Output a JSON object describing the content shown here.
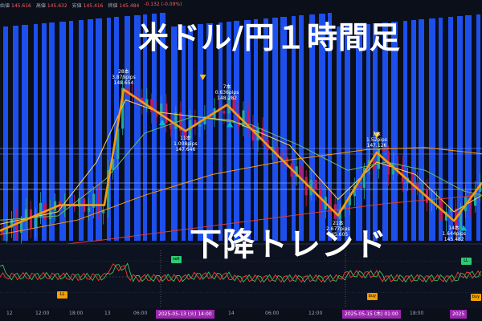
{
  "header": {
    "ohlc": [
      {
        "label": "始値",
        "value": "145.616"
      },
      {
        "label": "高値",
        "value": "145.632"
      },
      {
        "label": "安値",
        "value": "145.416"
      },
      {
        "label": "終値",
        "value": "145.484"
      },
      {
        "label": "",
        "value": "-0.132 (-0.09%)"
      }
    ]
  },
  "title": "米ドル/円１時間足",
  "subtitle": "下降トレンド",
  "colors": {
    "background": "#0b0f1a",
    "stripe": "#1f55ff",
    "zigzag": "#f39c12",
    "up_candle": "#26a69a",
    "down_candle": "#c2185b",
    "ma_fast": "#ffd54f",
    "ma_mid": "#66bb6a",
    "ma_slow": "#ff9800",
    "ma_long": "#e53935",
    "osc_red": "#ff3b30",
    "osc_green": "#34c759",
    "date_tag": "#9c27b0",
    "marker_yellow": "#ffc107",
    "marker_cyan": "#00bcd4"
  },
  "chart_data": {
    "type": "line",
    "price_range": [
      145.0,
      150.5
    ],
    "zigzag": {
      "points": [
        {
          "i": 0,
          "price": 145.24
        },
        {
          "i": 62,
          "price": 145.86
        },
        {
          "i": 108,
          "price": 145.86
        },
        {
          "i": 128,
          "price": 148.65
        },
        {
          "i": 192,
          "price": 147.65
        },
        {
          "i": 235,
          "price": 148.28
        },
        {
          "i": 350,
          "price": 145.61
        },
        {
          "i": 390,
          "price": 147.13
        },
        {
          "i": 470,
          "price": 145.48
        },
        {
          "i": 499,
          "price": 146.4
        }
      ]
    },
    "annotations": [
      {
        "i": 128,
        "price": 148.65,
        "lines": [
          "28本",
          "3.879pips",
          "148.654"
        ],
        "pos": "above"
      },
      {
        "i": 192,
        "price": 147.65,
        "lines": [
          "11本",
          "1.008pips",
          "147.646"
        ],
        "pos": "below"
      },
      {
        "i": 235,
        "price": 148.28,
        "lines": [
          "7本",
          "0.636pips",
          "148.282"
        ],
        "pos": "above"
      },
      {
        "i": 350,
        "price": 145.61,
        "lines": [
          "21本",
          "2.677pips",
          "145.605"
        ],
        "pos": "below"
      },
      {
        "i": 390,
        "price": 147.13,
        "lines": [
          "7本",
          "1.52pips",
          "147.126"
        ],
        "pos": "above"
      },
      {
        "i": 470,
        "price": 145.48,
        "lines": [
          "14本",
          "1.644pips",
          "145.482"
        ],
        "pos": "below"
      }
    ],
    "markers": [
      {
        "i": 210,
        "price": 148.95,
        "shape": "down-triangle",
        "color": "yellow"
      },
      {
        "i": 390,
        "price": 147.55,
        "shape": "down-triangle",
        "color": "yellow"
      },
      {
        "i": 168,
        "price": 147.85,
        "shape": "up-triangle",
        "color": "cyan"
      },
      {
        "i": 238,
        "price": 147.8,
        "shape": "up-triangle",
        "color": "cyan"
      },
      {
        "i": 480,
        "price": 145.3,
        "shape": "up-triangle",
        "color": "cyan"
      }
    ],
    "moving_averages": [
      {
        "id": "ma_fast",
        "color": "yellow",
        "points": [
          [
            0,
            145.4
          ],
          [
            60,
            145.7
          ],
          [
            100,
            146.9
          ],
          [
            130,
            148.4
          ],
          [
            165,
            148.1
          ],
          [
            200,
            148.0
          ],
          [
            240,
            147.9
          ],
          [
            300,
            147.3
          ],
          [
            350,
            146.0
          ],
          [
            390,
            146.9
          ],
          [
            430,
            146.6
          ],
          [
            470,
            145.7
          ],
          [
            499,
            146.1
          ]
        ]
      },
      {
        "id": "ma_mid",
        "color": "green",
        "points": [
          [
            0,
            145.5
          ],
          [
            60,
            145.6
          ],
          [
            110,
            146.5
          ],
          [
            150,
            147.6
          ],
          [
            200,
            148.0
          ],
          [
            260,
            147.8
          ],
          [
            310,
            147.3
          ],
          [
            360,
            146.7
          ],
          [
            400,
            146.9
          ],
          [
            440,
            146.7
          ],
          [
            480,
            146.2
          ],
          [
            499,
            146.1
          ]
        ]
      },
      {
        "id": "ma_slow",
        "color": "orange",
        "points": [
          [
            0,
            145.15
          ],
          [
            80,
            145.5
          ],
          [
            150,
            146.1
          ],
          [
            220,
            146.6
          ],
          [
            300,
            146.95
          ],
          [
            380,
            147.2
          ],
          [
            440,
            147.25
          ],
          [
            499,
            147.1
          ]
        ]
      },
      {
        "id": "ma_long",
        "color": "red",
        "points": [
          [
            0,
            144.75
          ],
          [
            100,
            145.0
          ],
          [
            200,
            145.3
          ],
          [
            300,
            145.6
          ],
          [
            400,
            145.9
          ],
          [
            499,
            146.1
          ]
        ]
      }
    ],
    "x_axis_ticks": [
      "12",
      "12:00",
      "18:00",
      "13",
      "06:00",
      "14",
      "06:00",
      "12:00",
      "18:00",
      "06:00",
      "2025-05-15 (木)  01:00"
    ],
    "x_axis_tags": [
      "2025-05-13 (火)  14:00",
      "2025-05-15 (木)  01:00",
      "2025"
    ],
    "oscillator": {
      "range": [
        0,
        100
      ],
      "level": 50,
      "signals": [
        {
          "i": 64,
          "value": 16,
          "label": "LL",
          "kind": "ll"
        },
        {
          "i": 182,
          "value": 84,
          "label": "sell",
          "kind": "sell"
        },
        {
          "i": 385,
          "value": 14,
          "label": "buy",
          "kind": "buy"
        },
        {
          "i": 482,
          "value": 80,
          "label": "LL",
          "kind": "sell"
        },
        {
          "i": 495,
          "value": 12,
          "label": "buy",
          "kind": "buy"
        }
      ]
    }
  }
}
